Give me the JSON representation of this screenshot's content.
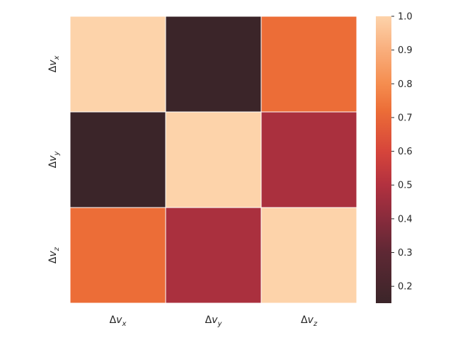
{
  "chart_data": {
    "type": "heatmap",
    "title": "",
    "xlabel": "",
    "ylabel": "",
    "x_labels": [
      {
        "base": "Δ",
        "var": "v",
        "sub": "x"
      },
      {
        "base": "Δ",
        "var": "v",
        "sub": "y"
      },
      {
        "base": "Δ",
        "var": "v",
        "sub": "z"
      }
    ],
    "y_labels": [
      {
        "base": "Δ",
        "var": "v",
        "sub": "x"
      },
      {
        "base": "Δ",
        "var": "v",
        "sub": "y"
      },
      {
        "base": "Δ",
        "var": "v",
        "sub": "z"
      }
    ],
    "values": [
      [
        1.0,
        0.15,
        0.72
      ],
      [
        0.15,
        1.0,
        0.48
      ],
      [
        0.72,
        0.48,
        1.0
      ]
    ],
    "colorbar": {
      "range": [
        0.15,
        1.0
      ],
      "ticks": [
        0.2,
        0.3,
        0.4,
        0.5,
        0.6,
        0.7,
        0.8,
        0.9,
        1.0
      ],
      "tick_labels": [
        "0.2",
        "0.3",
        "0.4",
        "0.5",
        "0.6",
        "0.7",
        "0.8",
        "0.9",
        "1.0"
      ],
      "colormap_stops": [
        {
          "v": 0.15,
          "color": "#3b2529"
        },
        {
          "v": 0.3,
          "color": "#5e2834"
        },
        {
          "v": 0.4,
          "color": "#882b3c"
        },
        {
          "v": 0.5,
          "color": "#b2313f"
        },
        {
          "v": 0.6,
          "color": "#d6453b"
        },
        {
          "v": 0.72,
          "color": "#ec6d37"
        },
        {
          "v": 0.8,
          "color": "#f58d4f"
        },
        {
          "v": 0.9,
          "color": "#f9ae7c"
        },
        {
          "v": 1.0,
          "color": "#fdd3aa"
        }
      ]
    }
  }
}
